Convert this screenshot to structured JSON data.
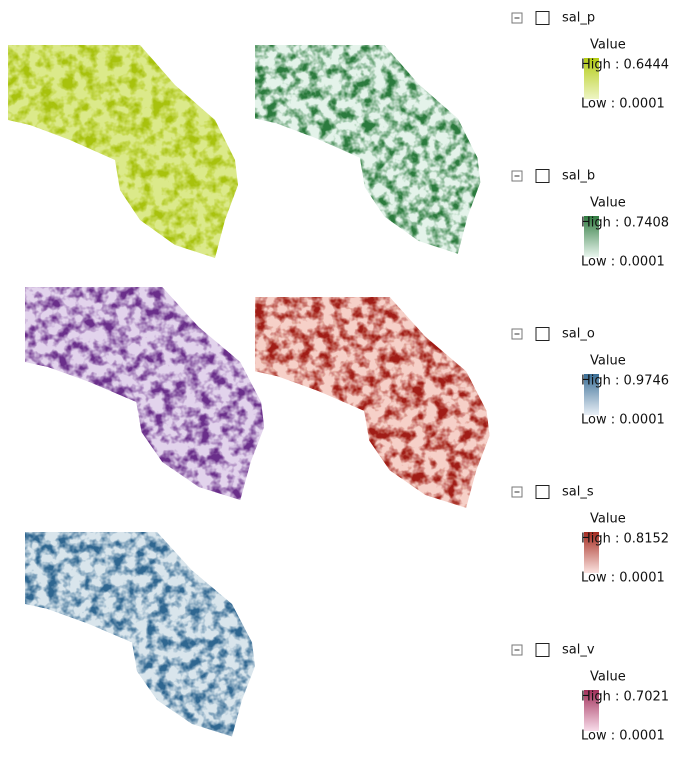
{
  "legend": {
    "layers": [
      {
        "name": "sal_p",
        "field": "Value",
        "high": "High : 0.6444",
        "low": "Low : 0.0001",
        "color_high": "#b3cb14",
        "color_low": "#eef5c4"
      },
      {
        "name": "sal_b",
        "field": "Value",
        "high": "High : 0.7408",
        "low": "Low : 0.0001",
        "color_high": "#2f7b3f",
        "color_low": "#e9f6ee"
      },
      {
        "name": "sal_o",
        "field": "Value",
        "high": "High : 0.9746",
        "low": "Low : 0.0001",
        "color_high": "#3a6e96",
        "color_low": "#e8eff6"
      },
      {
        "name": "sal_s",
        "field": "Value",
        "high": "High : 0.8152",
        "low": "Low : 0.0001",
        "color_high": "#a42a1f",
        "color_low": "#fbe3e0"
      },
      {
        "name": "sal_v",
        "field": "Value",
        "high": "High : 0.7021",
        "low": "Low : 0.0001",
        "color_high": "#a2305a",
        "color_low": "#f8dcea"
      }
    ]
  }
}
